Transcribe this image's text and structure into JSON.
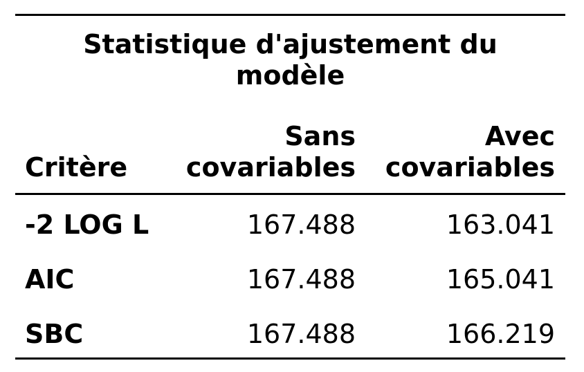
{
  "table": {
    "title_lines": [
      "Statistique d'ajustement du",
      "modèle"
    ],
    "headers": {
      "critere": "Critère",
      "sans_lines": [
        "Sans",
        "covariables"
      ],
      "avec_lines": [
        "Avec",
        "covariables"
      ]
    },
    "rows": [
      {
        "label": "-2 LOG L",
        "sans": "167.488",
        "avec": "163.041"
      },
      {
        "label": "AIC",
        "sans": "167.488",
        "avec": "165.041"
      },
      {
        "label": "SBC",
        "sans": "167.488",
        "avec": "166.219"
      }
    ]
  }
}
